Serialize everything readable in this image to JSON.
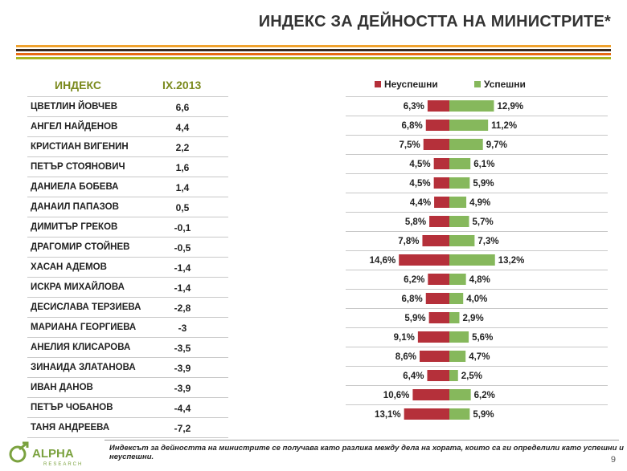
{
  "title": "ИНДЕКС ЗА ДЕЙНОСТТА НА МИНИСТРИТЕ*",
  "table": {
    "col_index": "ИНДЕКС",
    "col_date": "IX.2013"
  },
  "legend": {
    "unsuccessful": "Неуспешни",
    "successful": "Успешни"
  },
  "colors": {
    "unsuccessful": "#b5303a",
    "successful": "#86b85c",
    "header": "#7b8a1e"
  },
  "chart_data": {
    "type": "bar",
    "categories": [
      "ЦВЕТЛИН ЙОВЧЕВ",
      "АНГЕЛ НАЙДЕНОВ",
      "КРИСТИАН ВИГЕНИН",
      "ПЕТЪР СТОЯНОВИЧ",
      "ДАНИЕЛА БОБЕВА",
      "ДАНАИЛ ПАПАЗОВ",
      "ДИМИТЪР ГРЕКОВ",
      "ДРАГОМИР СТОЙНЕВ",
      "ХАСАН АДЕМОВ",
      "ИСКРА МИХАЙЛОВА",
      "ДЕСИСЛАВА ТЕРЗИЕВА",
      "МАРИАНА ГЕОРГИЕВА",
      "АНЕЛИЯ КЛИСАРОВА",
      "ЗИНАИДА ЗЛАТАНОВА",
      "ИВАН ДАНОВ",
      "ПЕТЪР ЧОБАНОВ",
      "ТАНЯ АНДРЕЕВА"
    ],
    "index": [
      "6,6",
      "4,4",
      "2,2",
      "1,6",
      "1,4",
      "0,5",
      "-0,1",
      "-0,5",
      "-1,4",
      "-1,4",
      "-2,8",
      "-3",
      "-3,5",
      "-3,9",
      "-3,9",
      "-4,4",
      "-7,2"
    ],
    "series": [
      {
        "name": "Неуспешни",
        "values": [
          6.3,
          6.8,
          7.5,
          4.5,
          4.5,
          4.4,
          5.8,
          7.8,
          14.6,
          6.2,
          6.8,
          5.9,
          9.1,
          8.6,
          6.4,
          10.6,
          13.1
        ],
        "labels": [
          "6,3%",
          "6,8%",
          "7,5%",
          "4,5%",
          "4,5%",
          "4,4%",
          "5,8%",
          "7,8%",
          "14,6%",
          "6,2%",
          "6,8%",
          "5,9%",
          "9,1%",
          "8,6%",
          "6,4%",
          "10,6%",
          "13,1%"
        ]
      },
      {
        "name": "Успешни",
        "values": [
          12.9,
          11.2,
          9.7,
          6.1,
          5.9,
          4.9,
          5.7,
          7.3,
          13.2,
          4.8,
          4.0,
          2.9,
          5.6,
          4.7,
          2.5,
          6.2,
          5.9
        ],
        "labels": [
          "12,9%",
          "11,2%",
          "9,7%",
          "6,1%",
          "5,9%",
          "4,9%",
          "5,7%",
          "7,3%",
          "13,2%",
          "4,8%",
          "4,0%",
          "2,9%",
          "5,6%",
          "4,7%",
          "2,5%",
          "6,2%",
          "5,9%"
        ]
      }
    ],
    "legend_position": "top"
  },
  "footer": {
    "note": "Индексът за дейността на министрите се получава като разлика между дела на хората, които са ги определили като успешни и неуспешни.",
    "page": "9"
  },
  "logo": {
    "name": "ALPHA",
    "sub": "RESEARCH"
  }
}
